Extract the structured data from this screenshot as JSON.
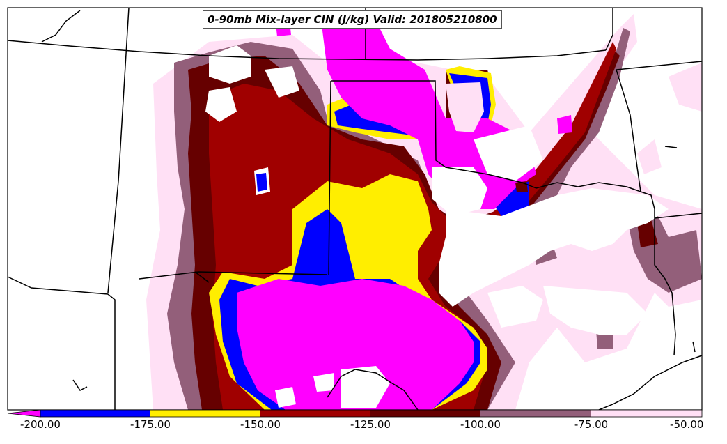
{
  "title": "0-90mb Mix-layer CIN (J/kg) Valid: 201805210800",
  "colorbar": {
    "levels": [
      "-200.00",
      "-175.00",
      "-150.00",
      "-125.00",
      "-100.00",
      "-75.00",
      "-50.00"
    ],
    "colors": [
      "#0000ff",
      "#ffee00",
      "#a00000",
      "#660000",
      "#935f7a",
      "#ffe0f5"
    ],
    "extend_color": "#ff00ff"
  },
  "map_colors": {
    "magenta": "#ff00ff",
    "blue": "#0000ff",
    "yellow": "#ffee00",
    "red": "#a00000",
    "dark_red": "#660000",
    "mauve": "#935f7a",
    "pink": "#ffe0f5",
    "background": "#ffffff",
    "boundaries": "#000000"
  }
}
